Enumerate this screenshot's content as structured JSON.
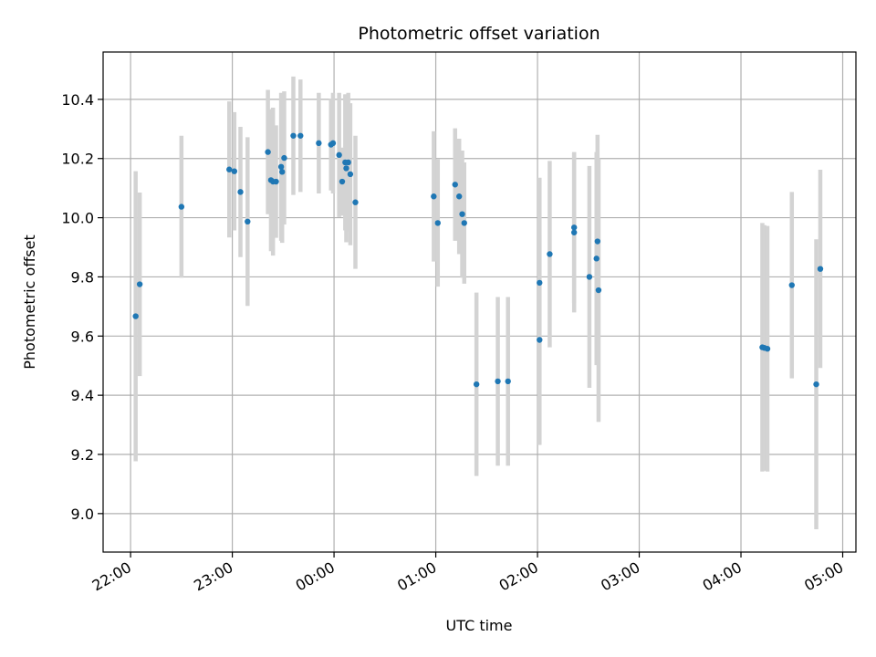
{
  "chart_data": {
    "type": "scatter",
    "title": "Photometric offset variation",
    "xlabel": "UTC time",
    "ylabel": "Photometric offset",
    "x_axis": "time (hours relative to 00:00 UTC)",
    "xlim": [
      -2.27,
      5.13
    ],
    "ylim": [
      8.87,
      10.56
    ],
    "grid": true,
    "x_ticks": [
      {
        "value": -2,
        "label": "22:00"
      },
      {
        "value": -1,
        "label": "23:00"
      },
      {
        "value": 0,
        "label": "00:00"
      },
      {
        "value": 1,
        "label": "01:00"
      },
      {
        "value": 2,
        "label": "02:00"
      },
      {
        "value": 3,
        "label": "03:00"
      },
      {
        "value": 4,
        "label": "04:00"
      },
      {
        "value": 5,
        "label": "05:00"
      }
    ],
    "y_ticks": [
      9.0,
      9.2,
      9.4,
      9.6,
      9.8,
      10.0,
      10.2,
      10.4
    ],
    "point_color": "#1f77b4",
    "errorbar_color": "#d3d3d3",
    "series": [
      {
        "points": [
          {
            "x": -1.95,
            "y": 9.667,
            "err": 0.49
          },
          {
            "x": -1.91,
            "y": 9.775,
            "err": 0.31
          },
          {
            "x": -1.5,
            "y": 10.037,
            "err": 0.24
          },
          {
            "x": -1.03,
            "y": 10.163,
            "err": 0.23
          },
          {
            "x": -0.98,
            "y": 10.157,
            "err": 0.2
          },
          {
            "x": -0.92,
            "y": 10.087,
            "err": 0.22
          },
          {
            "x": -0.85,
            "y": 9.987,
            "err": 0.285
          },
          {
            "x": -0.65,
            "y": 10.222,
            "err": 0.21
          },
          {
            "x": -0.62,
            "y": 10.127,
            "err": 0.24
          },
          {
            "x": -0.6,
            "y": 10.122,
            "err": 0.25
          },
          {
            "x": -0.57,
            "y": 10.122,
            "err": 0.19
          },
          {
            "x": -0.52,
            "y": 10.172,
            "err": 0.25
          },
          {
            "x": -0.51,
            "y": 10.155,
            "err": 0.24
          },
          {
            "x": -0.49,
            "y": 10.202,
            "err": 0.225
          },
          {
            "x": -0.4,
            "y": 10.277,
            "err": 0.2
          },
          {
            "x": -0.33,
            "y": 10.277,
            "err": 0.19
          },
          {
            "x": -0.15,
            "y": 10.252,
            "err": 0.17
          },
          {
            "x": -0.03,
            "y": 10.247,
            "err": 0.155
          },
          {
            "x": -0.01,
            "y": 10.252,
            "err": 0.17
          },
          {
            "x": 0.05,
            "y": 10.212,
            "err": 0.21
          },
          {
            "x": 0.08,
            "y": 10.122,
            "err": 0.115
          },
          {
            "x": 0.11,
            "y": 10.187,
            "err": 0.23
          },
          {
            "x": 0.12,
            "y": 10.167,
            "err": 0.25
          },
          {
            "x": 0.14,
            "y": 10.187,
            "err": 0.235
          },
          {
            "x": 0.16,
            "y": 10.147,
            "err": 0.24
          },
          {
            "x": 0.21,
            "y": 10.052,
            "err": 0.225
          },
          {
            "x": 0.98,
            "y": 10.072,
            "err": 0.22
          },
          {
            "x": 1.02,
            "y": 9.982,
            "err": 0.215
          },
          {
            "x": 1.19,
            "y": 10.112,
            "err": 0.19
          },
          {
            "x": 1.23,
            "y": 10.072,
            "err": 0.195
          },
          {
            "x": 1.26,
            "y": 10.012,
            "err": 0.215
          },
          {
            "x": 1.28,
            "y": 9.982,
            "err": 0.205
          },
          {
            "x": 1.4,
            "y": 9.437,
            "err": 0.31
          },
          {
            "x": 1.61,
            "y": 9.447,
            "err": 0.285
          },
          {
            "x": 1.71,
            "y": 9.447,
            "err": 0.285
          },
          {
            "x": 2.02,
            "y": 9.78,
            "err": 0.355
          },
          {
            "x": 2.02,
            "y": 9.587,
            "err": 0.355
          },
          {
            "x": 2.12,
            "y": 9.877,
            "err": 0.315
          },
          {
            "x": 2.36,
            "y": 9.967,
            "err": 0.255
          },
          {
            "x": 2.36,
            "y": 9.95,
            "err": 0.27
          },
          {
            "x": 2.51,
            "y": 9.8,
            "err": 0.375
          },
          {
            "x": 2.58,
            "y": 9.862,
            "err": 0.36
          },
          {
            "x": 2.59,
            "y": 9.92,
            "err": 0.36
          },
          {
            "x": 2.6,
            "y": 9.755,
            "err": 0.445
          },
          {
            "x": 4.21,
            "y": 9.562,
            "err": 0.42
          },
          {
            "x": 4.23,
            "y": 9.56,
            "err": 0.415
          },
          {
            "x": 4.26,
            "y": 9.557,
            "err": 0.415
          },
          {
            "x": 4.5,
            "y": 9.772,
            "err": 0.315
          },
          {
            "x": 4.74,
            "y": 9.437,
            "err": 0.49
          },
          {
            "x": 4.78,
            "y": 9.827,
            "err": 0.335
          }
        ]
      }
    ]
  }
}
